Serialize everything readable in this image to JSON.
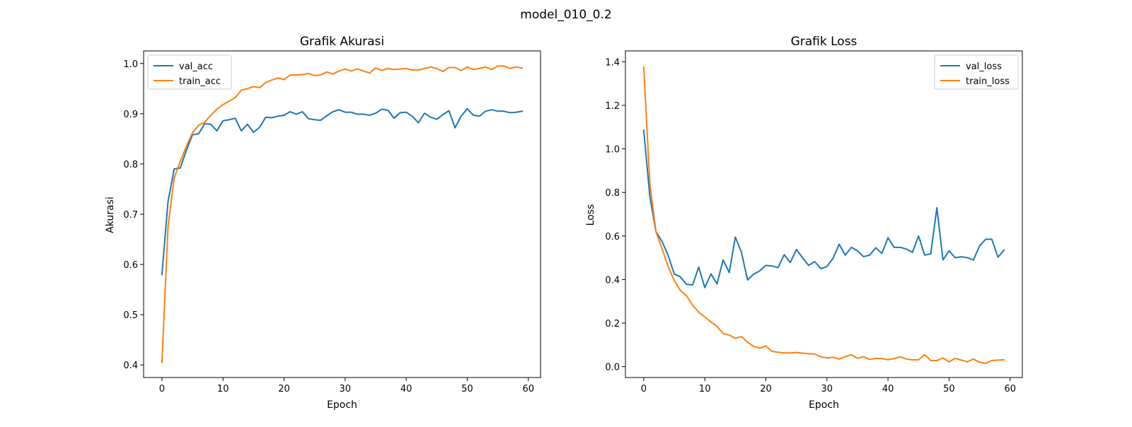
{
  "figure": {
    "title": "model_010_0.2"
  },
  "chart_data": [
    {
      "type": "line",
      "title": "Grafik Akurasi",
      "xlabel": "Epoch",
      "ylabel": "Akurasi",
      "xlim": [
        -3,
        62
      ],
      "ylim": [
        0.375,
        1.025
      ],
      "xticks": [
        0,
        10,
        20,
        30,
        40,
        50,
        60
      ],
      "yticks": [
        0.4,
        0.5,
        0.6,
        0.7,
        0.8,
        0.9,
        1.0
      ],
      "ytick_labels": [
        "0.4",
        "0.5",
        "0.6",
        "0.7",
        "0.8",
        "0.9",
        "1.0"
      ],
      "grid": false,
      "legend": "upper left",
      "x": [
        0,
        1,
        2,
        3,
        4,
        5,
        6,
        7,
        8,
        9,
        10,
        11,
        12,
        13,
        14,
        15,
        16,
        17,
        18,
        19,
        20,
        21,
        22,
        23,
        24,
        25,
        26,
        27,
        28,
        29,
        30,
        31,
        32,
        33,
        34,
        35,
        36,
        37,
        38,
        39,
        40,
        41,
        42,
        43,
        44,
        45,
        46,
        47,
        48,
        49,
        50,
        51,
        52,
        53,
        54,
        55,
        56,
        57,
        58,
        59
      ],
      "series": [
        {
          "name": "val_acc",
          "color": "#1f77b4",
          "values": [
            0.58,
            0.725,
            0.79,
            0.792,
            0.827,
            0.858,
            0.86,
            0.88,
            0.879,
            0.866,
            0.886,
            0.888,
            0.891,
            0.866,
            0.879,
            0.863,
            0.873,
            0.893,
            0.892,
            0.895,
            0.897,
            0.904,
            0.899,
            0.904,
            0.89,
            0.888,
            0.887,
            0.896,
            0.904,
            0.908,
            0.903,
            0.903,
            0.899,
            0.899,
            0.897,
            0.901,
            0.909,
            0.907,
            0.891,
            0.902,
            0.903,
            0.895,
            0.882,
            0.901,
            0.893,
            0.889,
            0.898,
            0.906,
            0.872,
            0.895,
            0.91,
            0.897,
            0.895,
            0.905,
            0.908,
            0.905,
            0.905,
            0.902,
            0.903,
            0.905
          ]
        },
        {
          "name": "train_acc",
          "color": "#ff7f0e",
          "values": [
            0.405,
            0.675,
            0.772,
            0.805,
            0.835,
            0.862,
            0.877,
            0.883,
            0.897,
            0.909,
            0.918,
            0.925,
            0.932,
            0.947,
            0.95,
            0.954,
            0.952,
            0.962,
            0.967,
            0.971,
            0.968,
            0.977,
            0.977,
            0.978,
            0.98,
            0.976,
            0.977,
            0.983,
            0.979,
            0.985,
            0.989,
            0.985,
            0.989,
            0.985,
            0.981,
            0.991,
            0.986,
            0.99,
            0.988,
            0.989,
            0.99,
            0.987,
            0.987,
            0.99,
            0.993,
            0.99,
            0.984,
            0.992,
            0.992,
            0.986,
            0.993,
            0.988,
            0.99,
            0.993,
            0.988,
            0.995,
            0.995,
            0.99,
            0.993,
            0.991
          ]
        }
      ]
    },
    {
      "type": "line",
      "title": "Grafik Loss",
      "xlabel": "Epoch",
      "ylabel": "Loss",
      "xlim": [
        -3,
        62
      ],
      "ylim": [
        -0.05,
        1.45
      ],
      "xticks": [
        0,
        10,
        20,
        30,
        40,
        50,
        60
      ],
      "yticks": [
        0.0,
        0.2,
        0.4,
        0.6,
        0.8,
        1.0,
        1.2,
        1.4
      ],
      "ytick_labels": [
        "0.0",
        "0.2",
        "0.4",
        "0.6",
        "0.8",
        "1.0",
        "1.2",
        "1.4"
      ],
      "grid": false,
      "legend": "upper right",
      "x": [
        0,
        1,
        2,
        3,
        4,
        5,
        6,
        7,
        8,
        9,
        10,
        11,
        12,
        13,
        14,
        15,
        16,
        17,
        18,
        19,
        20,
        21,
        22,
        23,
        24,
        25,
        26,
        27,
        28,
        29,
        30,
        31,
        32,
        33,
        34,
        35,
        36,
        37,
        38,
        39,
        40,
        41,
        42,
        43,
        44,
        45,
        46,
        47,
        48,
        49,
        50,
        51,
        52,
        53,
        54,
        55,
        56,
        57,
        58,
        59
      ],
      "series": [
        {
          "name": "val_loss",
          "color": "#1f77b4",
          "values": [
            1.085,
            0.78,
            0.62,
            0.575,
            0.51,
            0.425,
            0.412,
            0.378,
            0.375,
            0.457,
            0.363,
            0.426,
            0.38,
            0.49,
            0.432,
            0.595,
            0.525,
            0.398,
            0.425,
            0.44,
            0.465,
            0.462,
            0.455,
            0.514,
            0.478,
            0.538,
            0.5,
            0.465,
            0.482,
            0.45,
            0.46,
            0.498,
            0.562,
            0.512,
            0.548,
            0.532,
            0.505,
            0.512,
            0.546,
            0.52,
            0.592,
            0.548,
            0.548,
            0.54,
            0.525,
            0.6,
            0.512,
            0.518,
            0.73,
            0.49,
            0.532,
            0.5,
            0.505,
            0.5,
            0.49,
            0.555,
            0.585,
            0.585,
            0.503,
            0.535
          ]
        },
        {
          "name": "train_loss",
          "color": "#ff7f0e",
          "values": [
            1.375,
            0.84,
            0.62,
            0.54,
            0.46,
            0.395,
            0.35,
            0.325,
            0.282,
            0.25,
            0.228,
            0.205,
            0.185,
            0.152,
            0.145,
            0.13,
            0.138,
            0.112,
            0.093,
            0.085,
            0.095,
            0.07,
            0.066,
            0.063,
            0.063,
            0.065,
            0.062,
            0.059,
            0.058,
            0.045,
            0.04,
            0.043,
            0.035,
            0.046,
            0.055,
            0.038,
            0.046,
            0.033,
            0.038,
            0.037,
            0.032,
            0.037,
            0.045,
            0.035,
            0.031,
            0.031,
            0.055,
            0.028,
            0.028,
            0.04,
            0.022,
            0.038,
            0.03,
            0.022,
            0.035,
            0.02,
            0.015,
            0.028,
            0.03,
            0.031
          ]
        }
      ]
    }
  ]
}
